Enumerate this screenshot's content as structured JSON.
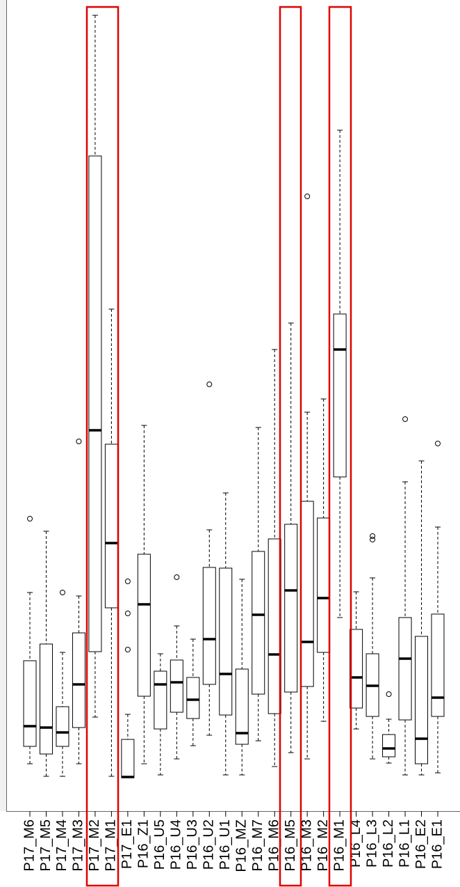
{
  "chart_data": {
    "type": "box",
    "categories": [
      "P17_M6",
      "P17_M5",
      "P17_M4",
      "P17_M3",
      "P17_M2",
      "P17_M1",
      "P17_E1",
      "P16_Z1",
      "P16_U5",
      "P16_U4",
      "P16_U3",
      "P16_U2",
      "P16_U1",
      "P16_MZ",
      "P16_M7",
      "P16_M6",
      "P16_M5",
      "P16_M3",
      "P16_M2",
      "P16_M1",
      "P16_L4",
      "P16_L3",
      "P16_L2",
      "P16_L1",
      "P16_E2",
      "P16_E1"
    ],
    "whisker_low": [
      68,
      50,
      50,
      68,
      135,
      50,
      48,
      68,
      52,
      75,
      94,
      109,
      52,
      52,
      101,
      64,
      84,
      75,
      129,
      278,
      118,
      75,
      69,
      52,
      52,
      55
    ],
    "q1": [
      93,
      82,
      93,
      120,
      229,
      292,
      48,
      165,
      118,
      142,
      133,
      182,
      138,
      96,
      168,
      140,
      171,
      179,
      228,
      480,
      148,
      136,
      78,
      131,
      68,
      136
    ],
    "median": [
      122,
      120,
      113,
      182,
      547,
      385,
      49,
      297,
      182,
      185,
      160,
      247,
      197,
      112,
      282,
      225,
      317,
      243,
      306,
      663,
      192,
      180,
      90,
      219,
      104,
      163
    ],
    "q3": [
      216,
      240,
      150,
      256,
      941,
      527,
      103,
      369,
      201,
      217,
      192,
      350,
      349,
      204,
      373,
      391,
      412,
      445,
      421,
      714,
      261,
      226,
      110,
      278,
      251,
      283
    ],
    "whisker_high": [
      314,
      402,
      228,
      309,
      1143,
      721,
      139,
      554,
      226,
      266,
      247,
      404,
      457,
      333,
      551,
      663,
      701,
      573,
      592,
      978,
      315,
      335,
      132,
      473,
      503,
      408
    ],
    "outliers": [
      [
        420
      ],
      [],
      [
        314
      ],
      [
        531
      ],
      [],
      [],
      [
        330,
        284,
        232
      ],
      [],
      [],
      [
        336
      ],
      [],
      [
        613
      ],
      [],
      [],
      [],
      [],
      [],
      [
        883
      ],
      [],
      [],
      [],
      [
        395,
        390
      ],
      [
        168
      ],
      [
        563
      ],
      [],
      [
        528
      ]
    ],
    "ylim": [
      0,
      1165
    ]
  }
}
